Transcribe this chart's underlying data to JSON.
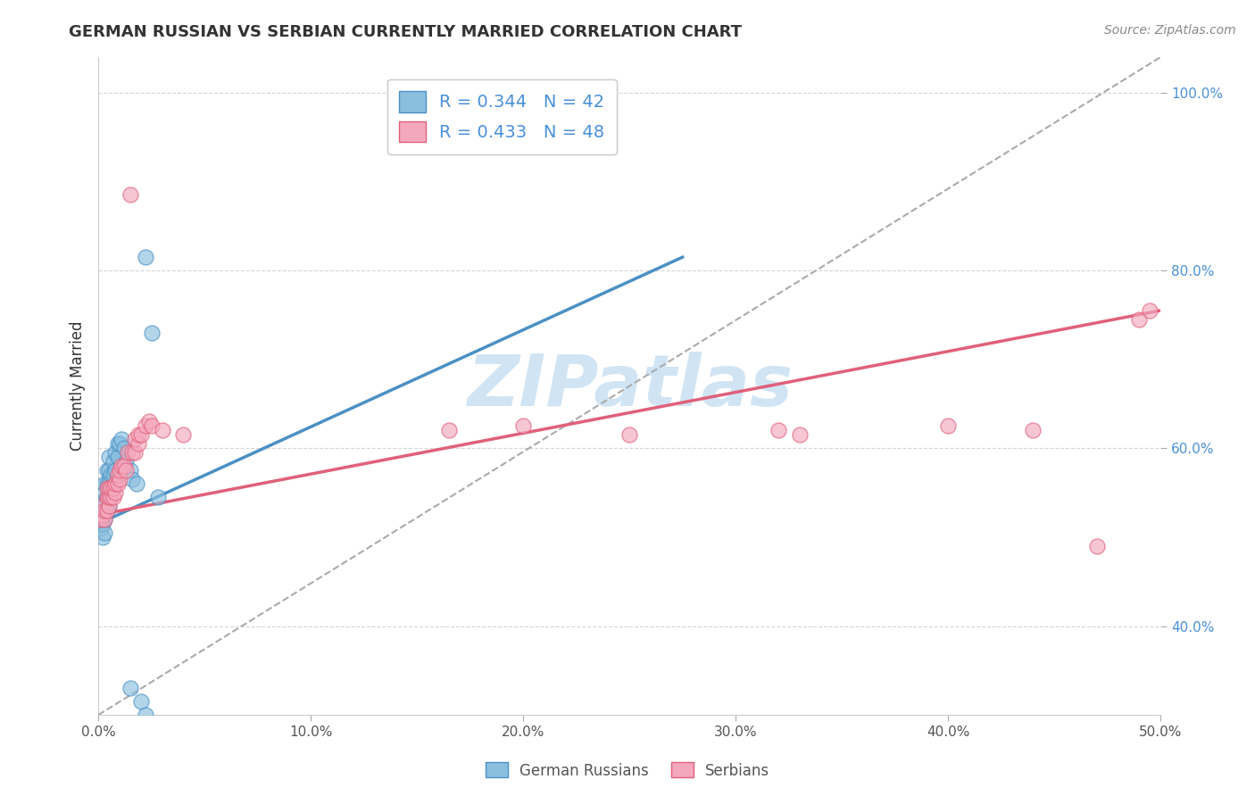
{
  "title": "GERMAN RUSSIAN VS SERBIAN CURRENTLY MARRIED CORRELATION CHART",
  "source_text": "Source: ZipAtlas.com",
  "ylabel": "Currently Married",
  "xlim": [
    0.0,
    0.5
  ],
  "ylim": [
    0.3,
    1.04
  ],
  "x_ticks": [
    0.0,
    0.1,
    0.2,
    0.3,
    0.4,
    0.5
  ],
  "x_tick_labels": [
    "0.0%",
    "10.0%",
    "20.0%",
    "30.0%",
    "40.0%",
    "50.0%"
  ],
  "y_ticks": [
    0.4,
    0.6,
    0.8,
    1.0
  ],
  "y_tick_labels": [
    "40.0%",
    "60.0%",
    "80.0%",
    "100.0%"
  ],
  "color_blue": "#8bbfdf",
  "color_pink": "#f4a8be",
  "color_blue_line": "#4a90c4",
  "color_pink_line": "#e0607a",
  "color_text_blue": "#4a90d9",
  "watermark": "ZIPatlas",
  "watermark_color": "#d0e4f4",
  "blue_x": [
    0.001,
    0.001,
    0.001,
    0.002,
    0.002,
    0.002,
    0.002,
    0.003,
    0.003,
    0.003,
    0.003,
    0.003,
    0.004,
    0.004,
    0.004,
    0.004,
    0.005,
    0.005,
    0.005,
    0.005,
    0.005,
    0.006,
    0.006,
    0.007,
    0.007,
    0.008,
    0.008,
    0.009,
    0.009,
    0.01,
    0.011,
    0.012,
    0.013,
    0.015,
    0.016,
    0.018,
    0.02,
    0.022,
    0.025,
    0.028,
    0.015,
    0.022
  ],
  "blue_y": [
    0.51,
    0.52,
    0.535,
    0.5,
    0.515,
    0.525,
    0.54,
    0.505,
    0.52,
    0.535,
    0.55,
    0.56,
    0.53,
    0.545,
    0.56,
    0.575,
    0.535,
    0.545,
    0.56,
    0.575,
    0.59,
    0.555,
    0.57,
    0.57,
    0.585,
    0.575,
    0.595,
    0.59,
    0.605,
    0.605,
    0.61,
    0.6,
    0.585,
    0.575,
    0.565,
    0.56,
    0.315,
    0.815,
    0.73,
    0.545,
    0.33,
    0.3
  ],
  "pink_x": [
    0.001,
    0.001,
    0.002,
    0.002,
    0.003,
    0.003,
    0.004,
    0.004,
    0.004,
    0.005,
    0.005,
    0.005,
    0.006,
    0.006,
    0.007,
    0.007,
    0.008,
    0.008,
    0.009,
    0.009,
    0.01,
    0.01,
    0.011,
    0.012,
    0.013,
    0.014,
    0.016,
    0.017,
    0.017,
    0.019,
    0.019,
    0.02,
    0.022,
    0.024,
    0.025,
    0.03,
    0.04,
    0.165,
    0.2,
    0.25,
    0.32,
    0.33,
    0.4,
    0.44,
    0.47,
    0.49,
    0.495,
    0.015
  ],
  "pink_y": [
    0.525,
    0.52,
    0.525,
    0.535,
    0.52,
    0.53,
    0.53,
    0.545,
    0.555,
    0.535,
    0.545,
    0.555,
    0.545,
    0.555,
    0.545,
    0.555,
    0.55,
    0.56,
    0.56,
    0.57,
    0.565,
    0.575,
    0.58,
    0.58,
    0.575,
    0.595,
    0.595,
    0.595,
    0.61,
    0.605,
    0.615,
    0.615,
    0.625,
    0.63,
    0.625,
    0.62,
    0.615,
    0.62,
    0.625,
    0.615,
    0.62,
    0.615,
    0.625,
    0.62,
    0.49,
    0.745,
    0.755,
    0.885
  ],
  "blue_line_x": [
    0.0,
    0.275
  ],
  "blue_line_y": [
    0.515,
    0.815
  ],
  "pink_line_x": [
    0.0,
    0.5
  ],
  "pink_line_y": [
    0.525,
    0.755
  ],
  "ref_line_x": [
    0.0,
    0.5
  ],
  "ref_line_y": [
    0.3,
    1.04
  ]
}
